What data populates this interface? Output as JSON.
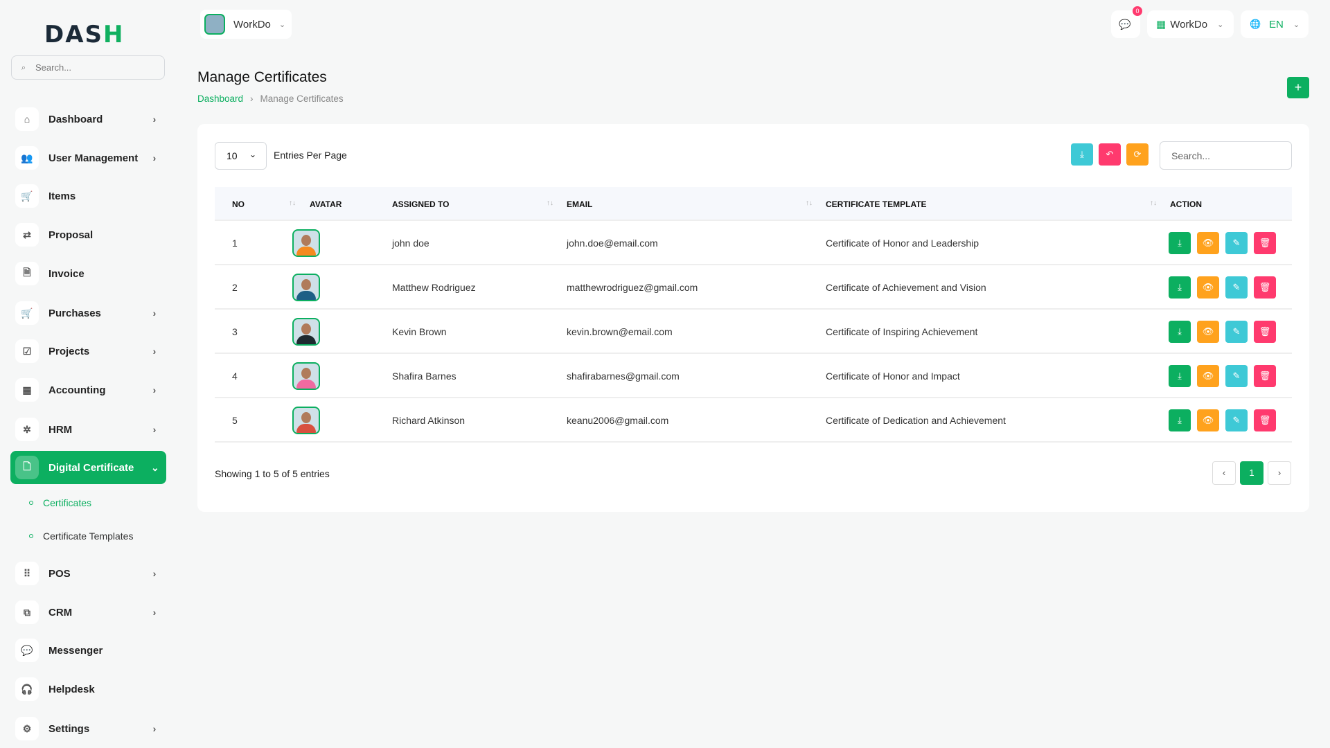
{
  "logo": {
    "text_a": "DAS",
    "text_b": "H"
  },
  "sidebar": {
    "search_placeholder": "Search...",
    "items": [
      {
        "label": "Dashboard",
        "icon": "home-icon",
        "glyph": "⌂",
        "chevron": true
      },
      {
        "label": "User Management",
        "icon": "users-icon",
        "glyph": "👥",
        "chevron": true
      },
      {
        "label": "Items",
        "icon": "cart-icon",
        "glyph": "🛒",
        "chevron": false
      },
      {
        "label": "Proposal",
        "icon": "proposal-icon",
        "glyph": "⇄",
        "chevron": false
      },
      {
        "label": "Invoice",
        "icon": "invoice-icon",
        "glyph": "🗎",
        "chevron": false
      },
      {
        "label": "Purchases",
        "icon": "cart-icon",
        "glyph": "🛒",
        "chevron": true
      },
      {
        "label": "Projects",
        "icon": "checkbox-icon",
        "glyph": "☑",
        "chevron": true
      },
      {
        "label": "Accounting",
        "icon": "grid-icon",
        "glyph": "▦",
        "chevron": true
      },
      {
        "label": "HRM",
        "icon": "hrm-icon",
        "glyph": "✲",
        "chevron": true
      },
      {
        "label": "Digital Certificate",
        "icon": "certificate-icon",
        "glyph": "🗋",
        "chevron": true,
        "active": true
      },
      {
        "label": "POS",
        "icon": "dots-grid-icon",
        "glyph": "⠿",
        "chevron": true
      },
      {
        "label": "CRM",
        "icon": "crm-icon",
        "glyph": "⧉",
        "chevron": true
      },
      {
        "label": "Messenger",
        "icon": "chat-icon",
        "glyph": "💬",
        "chevron": false
      },
      {
        "label": "Helpdesk",
        "icon": "headset-icon",
        "glyph": "🎧",
        "chevron": false
      },
      {
        "label": "Settings",
        "icon": "gear-icon",
        "glyph": "⚙",
        "chevron": true
      }
    ],
    "subitems": [
      {
        "label": "Certificates",
        "active": true
      },
      {
        "label": "Certificate Templates"
      }
    ]
  },
  "header": {
    "workspace": "WorkDo",
    "notifications": "0",
    "company": "WorkDo",
    "language": "EN"
  },
  "page": {
    "title": "Manage Certificates",
    "breadcrumb": [
      "Dashboard",
      "Manage Certificates"
    ]
  },
  "table": {
    "per_page": "10",
    "per_page_label": "Entries Per Page",
    "search_placeholder": "Search...",
    "columns": [
      "NO",
      "AVATAR",
      "ASSIGNED TO",
      "EMAIL",
      "CERTIFICATE TEMPLATE",
      "ACTION"
    ],
    "rows": [
      {
        "no": "1",
        "name": "john doe",
        "email": "john.doe@email.com",
        "template": "Certificate of Honor and Leadership",
        "shirt": "#f58a1f"
      },
      {
        "no": "2",
        "name": "Matthew Rodriguez",
        "email": "matthewrodriguez@gmail.com",
        "template": "Certificate of Achievement and Vision",
        "shirt": "#1d5f86"
      },
      {
        "no": "3",
        "name": "Kevin Brown",
        "email": "kevin.brown@email.com",
        "template": "Certificate of Inspiring Achievement",
        "shirt": "#1e2a30"
      },
      {
        "no": "4",
        "name": "Shafira Barnes",
        "email": "shafirabarnes@gmail.com",
        "template": "Certificate of Honor and Impact",
        "shirt": "#f06aa0"
      },
      {
        "no": "5",
        "name": "Richard Atkinson",
        "email": "keanu2006@gmail.com",
        "template": "Certificate of Dedication and Achievement",
        "shirt": "#d8503f"
      }
    ],
    "footer": "Showing 1 to 5 of 5 entries",
    "current_page": "1"
  },
  "colors": {
    "primary": "#0caf60",
    "info": "#3ec9d6",
    "danger": "#ff3a6e",
    "warning": "#ffa21d"
  }
}
